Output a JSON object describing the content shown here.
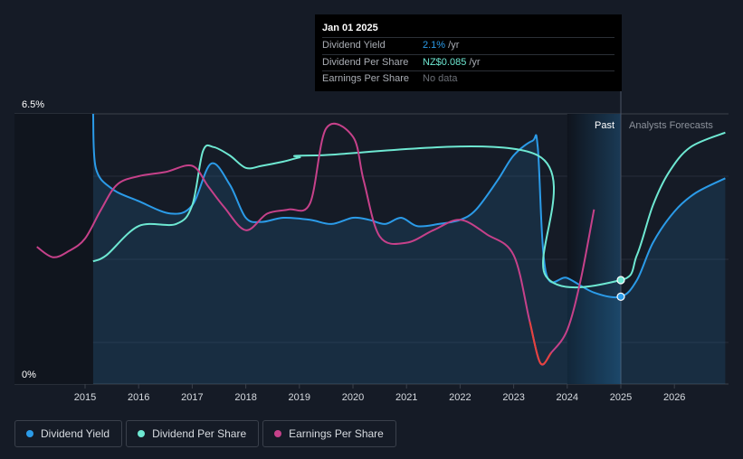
{
  "tooltip": {
    "date": "Jan 01 2025",
    "rows": [
      {
        "label": "Dividend Yield",
        "value": "2.1%",
        "unit": " /yr"
      },
      {
        "label": "Dividend Per Share",
        "value": "NZ$0.085",
        "unit": " /yr"
      },
      {
        "label": "Earnings Per Share",
        "value": "No data",
        "unit": ""
      }
    ]
  },
  "chart_data": {
    "type": "line",
    "x_axis": {
      "ticks": [
        "2015",
        "2016",
        "2017",
        "2018",
        "2019",
        "2020",
        "2021",
        "2022",
        "2023",
        "2024",
        "2025",
        "2026"
      ],
      "range": [
        2014.0,
        2027.0
      ]
    },
    "y_axis": {
      "top_label": "6.5%",
      "bottom_label": "0%",
      "range": [
        0,
        6.5
      ]
    },
    "regions": {
      "past_label": "Past",
      "forecast_label": "Analysts Forecasts",
      "past_start": 2024.0,
      "divider": 2025.0
    },
    "legend": [
      "Dividend Yield",
      "Dividend Per Share",
      "Earnings Per Share"
    ],
    "colors": {
      "dividend_yield": "#2b9be8",
      "dividend_per_share": "#6ee8d2",
      "earnings_per_share": "#c6418a",
      "earnings_negative": "#e5433d"
    },
    "series": [
      {
        "name": "Dividend Yield",
        "unit": "%",
        "points": [
          [
            2015.15,
            6.5
          ],
          [
            2015.2,
            5.2
          ],
          [
            2015.5,
            4.7
          ],
          [
            2016.0,
            4.4
          ],
          [
            2016.6,
            4.1
          ],
          [
            2017.0,
            4.3
          ],
          [
            2017.35,
            5.3
          ],
          [
            2017.7,
            4.8
          ],
          [
            2018.0,
            4.0
          ],
          [
            2018.3,
            3.9
          ],
          [
            2018.7,
            4.0
          ],
          [
            2019.2,
            3.95
          ],
          [
            2019.6,
            3.85
          ],
          [
            2020.0,
            4.0
          ],
          [
            2020.3,
            3.95
          ],
          [
            2020.6,
            3.85
          ],
          [
            2020.9,
            4.0
          ],
          [
            2021.2,
            3.8
          ],
          [
            2021.6,
            3.85
          ],
          [
            2022.0,
            3.95
          ],
          [
            2022.3,
            4.2
          ],
          [
            2022.7,
            4.9
          ],
          [
            2023.0,
            5.5
          ],
          [
            2023.35,
            5.85
          ],
          [
            2023.45,
            5.7
          ],
          [
            2023.6,
            2.7
          ],
          [
            2024.0,
            2.55
          ],
          [
            2024.5,
            2.2
          ],
          [
            2025.0,
            2.1
          ],
          [
            2025.3,
            2.5
          ],
          [
            2025.6,
            3.4
          ],
          [
            2026.0,
            4.15
          ],
          [
            2026.4,
            4.6
          ],
          [
            2026.95,
            4.95
          ]
        ]
      },
      {
        "name": "Dividend Per Share",
        "unit": "NZ$",
        "points": [
          [
            2015.15,
            2.95
          ],
          [
            2015.4,
            3.1
          ],
          [
            2016.0,
            3.8
          ],
          [
            2016.7,
            3.85
          ],
          [
            2017.0,
            4.3
          ],
          [
            2017.2,
            5.6
          ],
          [
            2017.4,
            5.7
          ],
          [
            2017.7,
            5.5
          ],
          [
            2018.0,
            5.2
          ],
          [
            2018.3,
            5.25
          ],
          [
            2018.7,
            5.35
          ],
          [
            2019.0,
            5.45
          ],
          [
            2019.3,
            5.5
          ],
          [
            2023.45,
            5.5
          ],
          [
            2023.6,
            2.6
          ],
          [
            2025.0,
            2.5
          ],
          [
            2025.3,
            3.1
          ],
          [
            2025.6,
            4.3
          ],
          [
            2025.9,
            5.1
          ],
          [
            2026.3,
            5.7
          ],
          [
            2026.95,
            6.05
          ]
        ]
      },
      {
        "name": "Earnings Per Share",
        "unit": "NZ$",
        "points": [
          [
            2014.1,
            3.3
          ],
          [
            2014.4,
            3.05
          ],
          [
            2014.7,
            3.2
          ],
          [
            2015.0,
            3.5
          ],
          [
            2015.3,
            4.2
          ],
          [
            2015.6,
            4.8
          ],
          [
            2016.0,
            5.0
          ],
          [
            2016.5,
            5.1
          ],
          [
            2017.0,
            5.25
          ],
          [
            2017.3,
            4.75
          ],
          [
            2017.6,
            4.25
          ],
          [
            2018.0,
            3.7
          ],
          [
            2018.4,
            4.1
          ],
          [
            2018.8,
            4.2
          ],
          [
            2019.2,
            4.35
          ],
          [
            2019.5,
            6.15
          ],
          [
            2020.0,
            5.95
          ],
          [
            2020.2,
            4.9
          ],
          [
            2020.5,
            3.55
          ],
          [
            2021.0,
            3.4
          ],
          [
            2021.5,
            3.7
          ],
          [
            2022.0,
            3.95
          ],
          [
            2022.5,
            3.6
          ],
          [
            2023.0,
            3.1
          ],
          [
            2023.3,
            1.5
          ],
          [
            2023.5,
            0.5
          ],
          [
            2023.7,
            0.75
          ],
          [
            2024.0,
            1.3
          ],
          [
            2024.25,
            2.5
          ],
          [
            2024.5,
            4.2
          ]
        ]
      }
    ],
    "markers": [
      {
        "series": "Dividend Per Share",
        "x": 2025.0,
        "y": 2.5
      },
      {
        "series": "Dividend Yield",
        "x": 2025.0,
        "y": 2.1
      }
    ]
  }
}
